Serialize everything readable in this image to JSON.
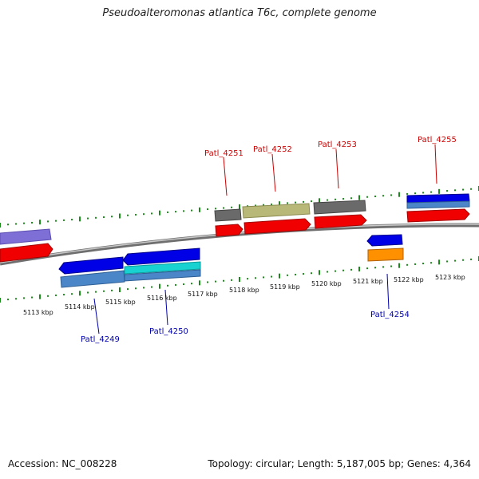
{
  "title": "Pseudoalteromonas atlantica T6c, complete genome",
  "footer": {
    "accession": "Accession: NC_008228",
    "topology": "Topology: circular; Length: 5,187,005 bp; Genes: 4,364"
  },
  "colors": {
    "backbone": "#7a7a7a",
    "tick": "#1a8c1a",
    "label_top": "#cc0000",
    "label_bottom": "#0000aa"
  },
  "scale_labels": [
    "5113 kbp",
    "5114 kbp",
    "5115 kbp",
    "5116 kbp",
    "5117 kbp",
    "5118 kbp",
    "5119 kbp",
    "5120 kbp",
    "5121 kbp",
    "5122 kbp",
    "5123 kbp"
  ],
  "gene_labels_top": [
    "Patl_4251",
    "Patl_4252",
    "Patl_4253",
    "Patl_4255"
  ],
  "gene_labels_bottom": [
    "Patl_4249",
    "Patl_4250",
    "Patl_4254"
  ]
}
